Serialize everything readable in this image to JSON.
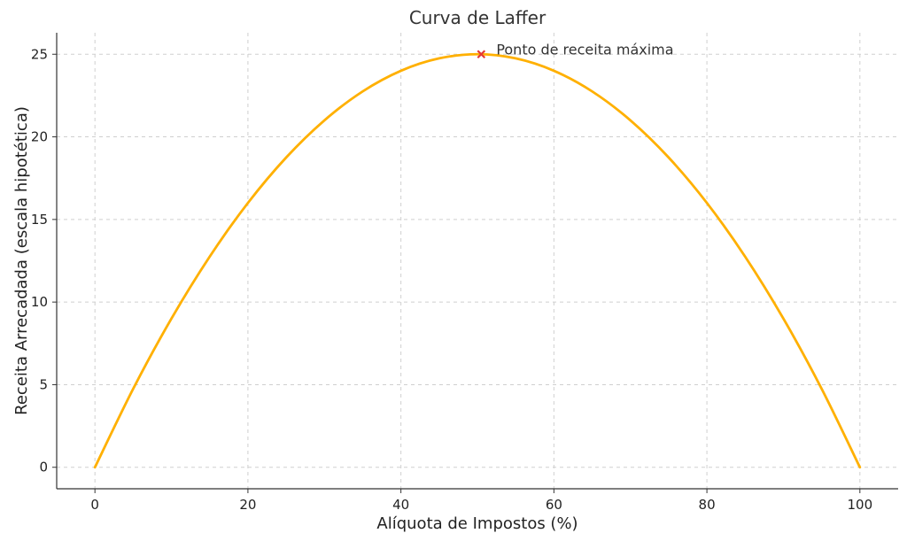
{
  "chart_data": {
    "type": "line",
    "title": "Curva de Laffer",
    "xlabel": "Alíquota de Impostos (%)",
    "ylabel": "Receita Arrecadada (escala hipotética)",
    "xlim": [
      -5,
      105
    ],
    "ylim": [
      -1.3,
      26.3
    ],
    "xticks": [
      0,
      20,
      40,
      60,
      80,
      100
    ],
    "yticks": [
      0,
      5,
      10,
      15,
      20,
      25
    ],
    "grid": true,
    "series": [
      {
        "color": "#FFB000",
        "x": [
          0,
          5,
          10,
          15,
          20,
          25,
          30,
          35,
          40,
          45,
          50,
          55,
          60,
          65,
          70,
          75,
          80,
          85,
          90,
          95,
          100
        ],
        "y": [
          0,
          4.75,
          9.0,
          12.75,
          16.0,
          18.75,
          21.0,
          22.75,
          24.0,
          24.75,
          25.0,
          24.75,
          24.0,
          22.75,
          21.0,
          18.75,
          16.0,
          12.75,
          9.0,
          4.75,
          0
        ]
      }
    ],
    "annotations": [
      {
        "text": "Ponto de receita máxima",
        "x": 50.5,
        "y": 25,
        "marker": "x",
        "marker_color": "#E53935"
      }
    ]
  }
}
